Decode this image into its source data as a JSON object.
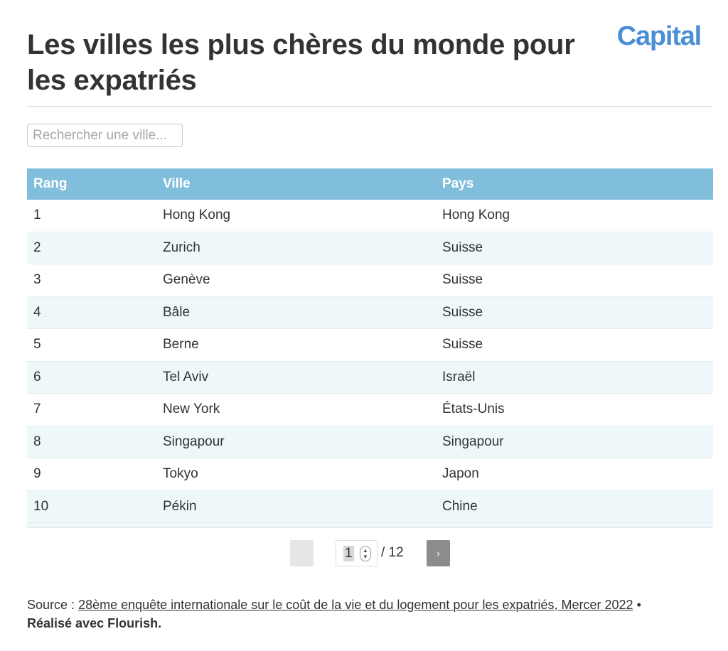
{
  "header": {
    "title": "Les villes les plus chères du monde pour les expatriés",
    "logo": "Capital"
  },
  "search": {
    "placeholder": "Rechercher une ville...",
    "value": ""
  },
  "table": {
    "columns": [
      "Rang",
      "Ville",
      "Pays"
    ],
    "rows": [
      [
        "1",
        "Hong Kong",
        "Hong Kong"
      ],
      [
        "2",
        "Zurich",
        "Suisse"
      ],
      [
        "3",
        "Genève",
        "Suisse"
      ],
      [
        "4",
        "Bâle",
        "Suisse"
      ],
      [
        "5",
        "Berne",
        "Suisse"
      ],
      [
        "6",
        "Tel Aviv",
        "Israël"
      ],
      [
        "7",
        "New York",
        "États-Unis"
      ],
      [
        "8",
        "Singapour",
        "Singapour"
      ],
      [
        "9",
        "Tokyo",
        "Japon"
      ],
      [
        "10",
        "Pékin",
        "Chine"
      ]
    ]
  },
  "pagination": {
    "prev_label": "‹",
    "next_label": "›",
    "current_page": "1",
    "total_label": "/ 12",
    "spinner_up": "▲",
    "spinner_down": "▼"
  },
  "footer": {
    "source_prefix": "Source :",
    "source_link": "28ème enquête internationale sur le coût de la vie et du logement pour les expatriés, Mercer 2022",
    "separator": "•",
    "credit": "Réalisé avec Flourish."
  },
  "colors": {
    "header_bg": "#81bedc",
    "row_alt_bg": "#eef8fb",
    "logo": "#4a8fd6",
    "next_btn": "#8c8c8c"
  }
}
